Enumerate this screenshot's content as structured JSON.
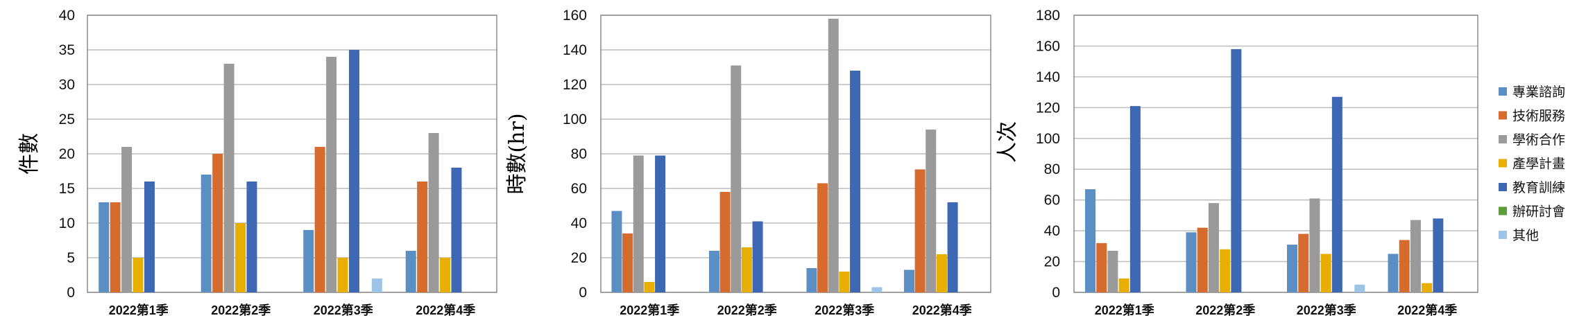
{
  "series_colors": [
    "#5B8FC4",
    "#D66B2E",
    "#9A9A9A",
    "#E8AE00",
    "#3E68B3",
    "#5E9C3A",
    "#9DC3E6"
  ],
  "legend": [
    "專業諮詢",
    "技術服務",
    "學術合作",
    "產學計畫",
    "教育訓練",
    "辦研討會",
    "其他"
  ],
  "chart_data": [
    {
      "type": "bar",
      "categories": [
        "2022第1季",
        "2022第2季",
        "2022第3季",
        "2022第4季"
      ],
      "ylabel": "件數",
      "ylim": [
        0,
        40
      ],
      "yticks": [
        0,
        5,
        10,
        15,
        20,
        25,
        30,
        35,
        40
      ],
      "grid": true,
      "series": [
        {
          "name": "專業諮詢",
          "values": [
            13,
            17,
            9,
            6
          ]
        },
        {
          "name": "技術服務",
          "values": [
            13,
            20,
            21,
            16
          ]
        },
        {
          "name": "學術合作",
          "values": [
            21,
            33,
            34,
            23
          ]
        },
        {
          "name": "產學計畫",
          "values": [
            5,
            10,
            5,
            5
          ]
        },
        {
          "name": "教育訓練",
          "values": [
            16,
            16,
            35,
            18
          ]
        },
        {
          "name": "辦研討會",
          "values": [
            0,
            0,
            0,
            0
          ]
        },
        {
          "name": "其他",
          "values": [
            0,
            0,
            2,
            0
          ]
        }
      ]
    },
    {
      "type": "bar",
      "categories": [
        "2022第1季",
        "2022第2季",
        "2022第3季",
        "2022第4季"
      ],
      "ylabel": "時數(hr)",
      "ylim": [
        0,
        160
      ],
      "yticks": [
        0,
        20,
        40,
        60,
        80,
        100,
        120,
        140,
        160
      ],
      "grid": true,
      "series": [
        {
          "name": "專業諮詢",
          "values": [
            47,
            24,
            14,
            13
          ]
        },
        {
          "name": "技術服務",
          "values": [
            34,
            58,
            63,
            71
          ]
        },
        {
          "name": "學術合作",
          "values": [
            79,
            131,
            158,
            94
          ]
        },
        {
          "name": "產學計畫",
          "values": [
            6,
            26,
            12,
            22
          ]
        },
        {
          "name": "教育訓練",
          "values": [
            79,
            41,
            128,
            52
          ]
        },
        {
          "name": "辦研討會",
          "values": [
            0,
            0,
            0,
            0
          ]
        },
        {
          "name": "其他",
          "values": [
            0,
            0,
            3,
            0
          ]
        }
      ]
    },
    {
      "type": "bar",
      "categories": [
        "2022第1季",
        "2022第2季",
        "2022第3季",
        "2022第4季"
      ],
      "ylabel": "人次",
      "ylim": [
        0,
        180
      ],
      "yticks": [
        0,
        20,
        40,
        60,
        80,
        100,
        120,
        140,
        160,
        180
      ],
      "grid": true,
      "legend_position": "right",
      "series": [
        {
          "name": "專業諮詢",
          "values": [
            67,
            39,
            31,
            25
          ]
        },
        {
          "name": "技術服務",
          "values": [
            32,
            42,
            38,
            34
          ]
        },
        {
          "name": "學術合作",
          "values": [
            27,
            58,
            61,
            47
          ]
        },
        {
          "name": "產學計畫",
          "values": [
            9,
            28,
            25,
            6
          ]
        },
        {
          "name": "教育訓練",
          "values": [
            121,
            158,
            127,
            48
          ]
        },
        {
          "name": "辦研討會",
          "values": [
            0,
            0,
            0,
            0
          ]
        },
        {
          "name": "其他",
          "values": [
            0,
            0,
            5,
            0
          ]
        }
      ]
    }
  ]
}
